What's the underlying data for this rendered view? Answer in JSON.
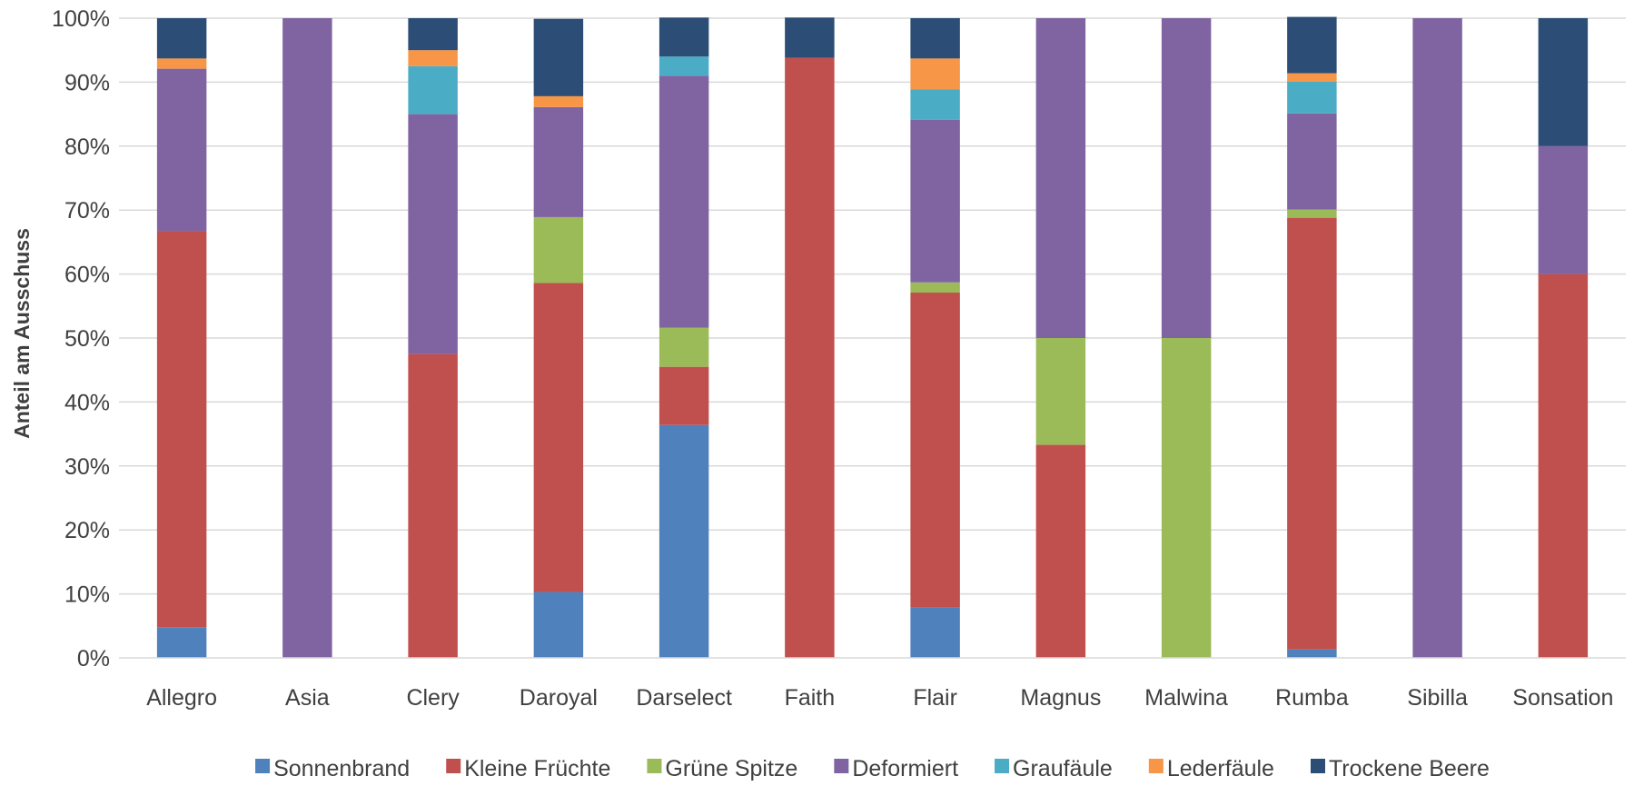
{
  "chart_data": {
    "type": "bar",
    "stacked": true,
    "normalized": true,
    "title": "",
    "xlabel": "",
    "ylabel": "Anteil am Ausschuss",
    "ylim": [
      0,
      100
    ],
    "y_ticks": [
      "0%",
      "10%",
      "20%",
      "30%",
      "40%",
      "50%",
      "60%",
      "70%",
      "80%",
      "90%",
      "100%"
    ],
    "grid": "horizontal",
    "legend_position": "bottom",
    "categories": [
      "Allegro",
      "Asia",
      "Clery",
      "Daroyal",
      "Darselect",
      "Faith",
      "Flair",
      "Magnus",
      "Malwina",
      "Rumba",
      "Sibilla",
      "Sonsation"
    ],
    "series": [
      {
        "name": "Sonnenbrand",
        "color": "#4F81BD",
        "values": [
          4.8,
          0,
          0,
          10.3,
          36.4,
          0,
          7.9,
          0,
          0,
          1.3,
          0,
          0
        ]
      },
      {
        "name": "Kleine Früchte",
        "color": "#C0504D",
        "values": [
          61.9,
          0,
          47.5,
          48.3,
          9.1,
          93.8,
          49.2,
          33.3,
          0,
          67.5,
          0,
          60
        ]
      },
      {
        "name": "Grüne Spitze",
        "color": "#9BBB59",
        "values": [
          0,
          0,
          0,
          10.3,
          6.1,
          0,
          1.6,
          16.7,
          50,
          1.3,
          0,
          0
        ]
      },
      {
        "name": "Deformiert",
        "color": "#8064A2",
        "values": [
          25.4,
          100,
          37.5,
          17.2,
          39.4,
          0,
          25.4,
          50,
          50,
          15,
          100,
          20
        ]
      },
      {
        "name": "Graufäule",
        "color": "#4BACC6",
        "values": [
          0,
          0,
          7.5,
          0,
          3,
          0,
          4.8,
          0,
          0,
          5,
          0,
          0
        ]
      },
      {
        "name": "Lederfäule",
        "color": "#F79646",
        "values": [
          1.6,
          0,
          2.5,
          1.7,
          0,
          0,
          4.8,
          0,
          0,
          1.3,
          0,
          0
        ]
      },
      {
        "name": "Trockene Beere",
        "color": "#2C4D75",
        "values": [
          6.3,
          0,
          5,
          12.1,
          6.1,
          6.3,
          6.3,
          0,
          0,
          8.8,
          0,
          20
        ]
      }
    ]
  }
}
